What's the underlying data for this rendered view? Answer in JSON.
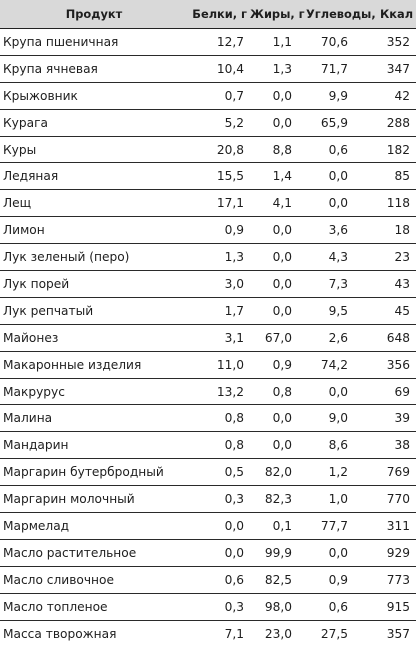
{
  "table": {
    "headers": {
      "name": "Продукт",
      "protein": "Белки, г",
      "fat": "Жиры, г",
      "carbs": "Углеводы, г",
      "kcal": "Ккал"
    },
    "rows": [
      {
        "name": "Крупа пшеничная",
        "protein": "12,7",
        "fat": "1,1",
        "carbs": "70,6",
        "kcal": "352"
      },
      {
        "name": "Крупа ячневая",
        "protein": "10,4",
        "fat": "1,3",
        "carbs": "71,7",
        "kcal": "347"
      },
      {
        "name": "Крыжовник",
        "protein": "0,7",
        "fat": "0,0",
        "carbs": "9,9",
        "kcal": "42"
      },
      {
        "name": "Курага",
        "protein": "5,2",
        "fat": "0,0",
        "carbs": "65,9",
        "kcal": "288"
      },
      {
        "name": "Куры",
        "protein": "20,8",
        "fat": "8,8",
        "carbs": "0,6",
        "kcal": "182"
      },
      {
        "name": "Ледяная",
        "protein": "15,5",
        "fat": "1,4",
        "carbs": "0,0",
        "kcal": "85"
      },
      {
        "name": "Лещ",
        "protein": "17,1",
        "fat": "4,1",
        "carbs": "0,0",
        "kcal": "118"
      },
      {
        "name": "Лимон",
        "protein": "0,9",
        "fat": "0,0",
        "carbs": "3,6",
        "kcal": "18"
      },
      {
        "name": "Лук зеленый (перо)",
        "protein": "1,3",
        "fat": "0,0",
        "carbs": "4,3",
        "kcal": "23"
      },
      {
        "name": "Лук порей",
        "protein": "3,0",
        "fat": "0,0",
        "carbs": "7,3",
        "kcal": "43"
      },
      {
        "name": "Лук репчатый",
        "protein": "1,7",
        "fat": "0,0",
        "carbs": "9,5",
        "kcal": "45"
      },
      {
        "name": "Майонез",
        "protein": "3,1",
        "fat": "67,0",
        "carbs": "2,6",
        "kcal": "648"
      },
      {
        "name": "Макаронные изделия",
        "protein": "11,0",
        "fat": "0,9",
        "carbs": "74,2",
        "kcal": "356"
      },
      {
        "name": "Макрурус",
        "protein": "13,2",
        "fat": "0,8",
        "carbs": "0,0",
        "kcal": "69"
      },
      {
        "name": "Малина",
        "protein": "0,8",
        "fat": "0,0",
        "carbs": "9,0",
        "kcal": "39"
      },
      {
        "name": "Мандарин",
        "protein": "0,8",
        "fat": "0,0",
        "carbs": "8,6",
        "kcal": "38"
      },
      {
        "name": "Маргарин бутербродный",
        "protein": "0,5",
        "fat": "82,0",
        "carbs": "1,2",
        "kcal": "769"
      },
      {
        "name": "Маргарин молочный",
        "protein": "0,3",
        "fat": "82,3",
        "carbs": "1,0",
        "kcal": "770"
      },
      {
        "name": "Мармелад",
        "protein": "0,0",
        "fat": "0,1",
        "carbs": "77,7",
        "kcal": "311"
      },
      {
        "name": "Масло растительное",
        "protein": "0,0",
        "fat": "99,9",
        "carbs": "0,0",
        "kcal": "929"
      },
      {
        "name": "Масло сливочное",
        "protein": "0,6",
        "fat": "82,5",
        "carbs": "0,9",
        "kcal": "773"
      },
      {
        "name": "Масло топленое",
        "protein": "0,3",
        "fat": "98,0",
        "carbs": "0,6",
        "kcal": "915"
      },
      {
        "name": "Масса творожная",
        "protein": "7,1",
        "fat": "23,0",
        "carbs": "27,5",
        "kcal": "357"
      }
    ]
  }
}
